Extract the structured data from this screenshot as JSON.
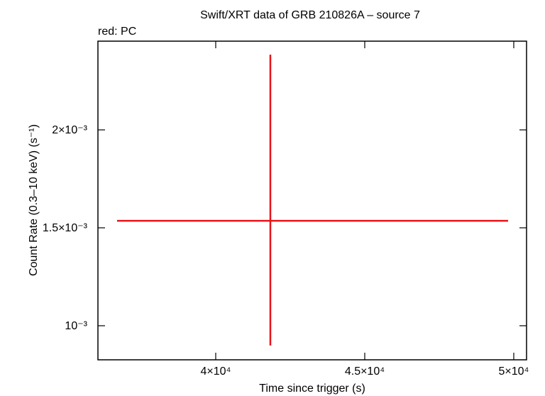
{
  "chart_data": {
    "type": "errorbar",
    "title": "Swift/XRT data of GRB 210826A – source 7",
    "subtitle": "red: PC",
    "x_label": "Time since trigger (s)",
    "y_label": "Count Rate (0.3–10 keV) (s⁻¹)",
    "xlim": [
      36048,
      50429
    ],
    "ylim": [
      0.000826,
      0.002453
    ],
    "xticks": [
      {
        "value": 40000,
        "label": "4×10⁴"
      },
      {
        "value": 45000,
        "label": "4.5×10⁴"
      },
      {
        "value": 50000,
        "label": "5×10⁴"
      }
    ],
    "yticks": [
      {
        "value": 0.001,
        "label": "10⁻³"
      },
      {
        "value": 0.0015,
        "label": "1.5×10⁻³"
      },
      {
        "value": 0.002,
        "label": "2×10⁻³"
      }
    ],
    "series": [
      {
        "color": "#e8141a",
        "x": [
          41833
        ],
        "values": [
          0.001536
        ],
        "xerr_minus": [
          5143
        ],
        "xerr_plus": [
          7977
        ],
        "yerr_minus": [
          0.000637
        ],
        "yerr_plus": [
          0.000848
        ]
      }
    ]
  }
}
